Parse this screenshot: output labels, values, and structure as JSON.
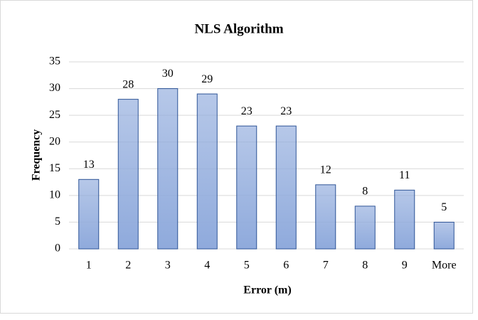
{
  "chart_data": {
    "type": "bar",
    "title": "NLS Algorithm",
    "x_label": "Error (m)",
    "y_label": "Frequency",
    "categories": [
      "1",
      "2",
      "3",
      "4",
      "5",
      "6",
      "7",
      "8",
      "9",
      "More"
    ],
    "values": [
      13,
      28,
      30,
      29,
      23,
      23,
      12,
      8,
      11,
      5
    ],
    "color": "#8faadc",
    "edge_color": "#2f5597",
    "ylim": [
      0,
      35
    ],
    "yticks": [
      0,
      5,
      10,
      15,
      20,
      25,
      30,
      35
    ],
    "grid": true
  }
}
